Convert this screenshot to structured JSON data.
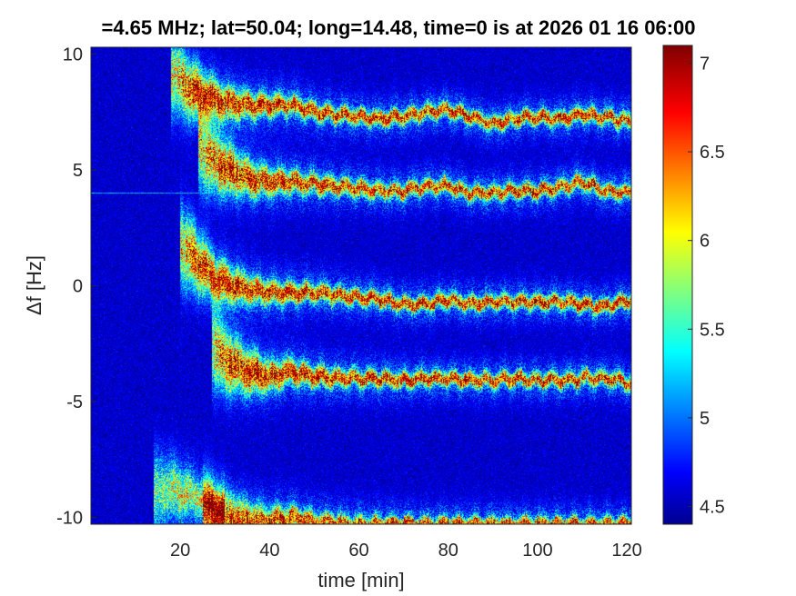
{
  "chart_data": {
    "type": "heatmap",
    "title": "=4.65 MHz;  lat=50.04; long=14.48, time=0 is at 2026 01 16 06:00",
    "xlabel": "time [min]",
    "ylabel": "Δf [Hz]",
    "xlim": [
      0,
      121
    ],
    "ylim": [
      -10.3,
      10.3
    ],
    "x_ticks": [
      20,
      40,
      60,
      80,
      100,
      120
    ],
    "x_tick_labels": [
      "20",
      "40",
      "60",
      "80",
      "100",
      "120"
    ],
    "y_ticks": [
      -10,
      -5,
      0,
      5,
      10
    ],
    "y_tick_labels": [
      "-10",
      "-5",
      "0",
      "5",
      "10"
    ],
    "colorbar": {
      "range": [
        4.4,
        7.1
      ],
      "ticks": [
        4.5,
        5,
        5.5,
        6,
        6.5,
        7
      ],
      "tick_labels": [
        "4.5",
        "5",
        "5.5",
        "6",
        "6.5",
        "7"
      ],
      "colormap": "jet"
    },
    "background_level": 4.6,
    "carrier_line": {
      "y": 4.0,
      "level": 5.2
    },
    "traces": [
      {
        "start": 18,
        "end": 121,
        "peak": 7.0,
        "points": [
          [
            18,
            9.2
          ],
          [
            22,
            8.5
          ],
          [
            25,
            8.2
          ],
          [
            30,
            7.9
          ],
          [
            35,
            7.8
          ],
          [
            40,
            7.8
          ],
          [
            45,
            7.8
          ],
          [
            50,
            7.5
          ],
          [
            55,
            7.4
          ],
          [
            60,
            7.3
          ],
          [
            65,
            7.2
          ],
          [
            70,
            7.3
          ],
          [
            75,
            7.5
          ],
          [
            80,
            7.6
          ],
          [
            85,
            7.3
          ],
          [
            90,
            7.0
          ],
          [
            95,
            7.2
          ],
          [
            100,
            7.3
          ],
          [
            105,
            7.2
          ],
          [
            110,
            7.4
          ],
          [
            115,
            7.3
          ],
          [
            121,
            7.1
          ]
        ]
      },
      {
        "start": 24,
        "end": 121,
        "peak": 6.9,
        "points": [
          [
            24,
            6.0
          ],
          [
            28,
            5.3
          ],
          [
            32,
            4.9
          ],
          [
            36,
            4.6
          ],
          [
            40,
            4.5
          ],
          [
            45,
            4.5
          ],
          [
            50,
            4.4
          ],
          [
            55,
            4.3
          ],
          [
            60,
            4.2
          ],
          [
            65,
            4.1
          ],
          [
            70,
            4.1
          ],
          [
            75,
            4.3
          ],
          [
            80,
            4.3
          ],
          [
            85,
            4.0
          ],
          [
            90,
            4.0
          ],
          [
            95,
            4.1
          ],
          [
            100,
            4.1
          ],
          [
            105,
            4.2
          ],
          [
            110,
            4.5
          ],
          [
            115,
            4.1
          ],
          [
            121,
            4.0
          ]
        ]
      },
      {
        "start": 20,
        "end": 121,
        "peak": 7.0,
        "points": [
          [
            20,
            1.8
          ],
          [
            24,
            1.0
          ],
          [
            28,
            0.3
          ],
          [
            32,
            0.0
          ],
          [
            36,
            -0.2
          ],
          [
            40,
            -0.3
          ],
          [
            45,
            -0.3
          ],
          [
            50,
            -0.3
          ],
          [
            55,
            -0.4
          ],
          [
            60,
            -0.5
          ],
          [
            65,
            -0.6
          ],
          [
            70,
            -0.8
          ],
          [
            75,
            -0.8
          ],
          [
            80,
            -0.6
          ],
          [
            85,
            -0.8
          ],
          [
            90,
            -0.7
          ],
          [
            95,
            -0.7
          ],
          [
            100,
            -0.7
          ],
          [
            105,
            -0.7
          ],
          [
            110,
            -0.8
          ],
          [
            115,
            -0.9
          ],
          [
            121,
            -0.6
          ]
        ]
      },
      {
        "start": 27,
        "end": 121,
        "peak": 7.0,
        "points": [
          [
            27,
            -2.5
          ],
          [
            30,
            -3.2
          ],
          [
            35,
            -3.7
          ],
          [
            40,
            -3.9
          ],
          [
            45,
            -3.7
          ],
          [
            50,
            -3.9
          ],
          [
            55,
            -4.0
          ],
          [
            60,
            -4.0
          ],
          [
            65,
            -4.0
          ],
          [
            70,
            -4.1
          ],
          [
            75,
            -4.0
          ],
          [
            80,
            -4.0
          ],
          [
            85,
            -4.1
          ],
          [
            90,
            -4.1
          ],
          [
            95,
            -4.0
          ],
          [
            100,
            -4.1
          ],
          [
            105,
            -4.1
          ],
          [
            110,
            -4.0
          ],
          [
            115,
            -4.0
          ],
          [
            121,
            -4.2
          ]
        ]
      },
      {
        "start": 14,
        "end": 30,
        "peak": 5.8,
        "points": [
          [
            14,
            -9.0
          ],
          [
            18,
            -8.8
          ],
          [
            22,
            -9.0
          ],
          [
            26,
            -9.3
          ],
          [
            30,
            -9.6
          ]
        ]
      },
      {
        "start": 25,
        "end": 121,
        "peak": 6.9,
        "points": [
          [
            25,
            -10.0
          ],
          [
            30,
            -10.1
          ],
          [
            35,
            -10.2
          ],
          [
            40,
            -10.2
          ],
          [
            45,
            -10.0
          ],
          [
            50,
            -10.2
          ],
          [
            60,
            -10.3
          ],
          [
            80,
            -10.3
          ],
          [
            100,
            -10.3
          ],
          [
            121,
            -10.3
          ]
        ]
      }
    ]
  }
}
